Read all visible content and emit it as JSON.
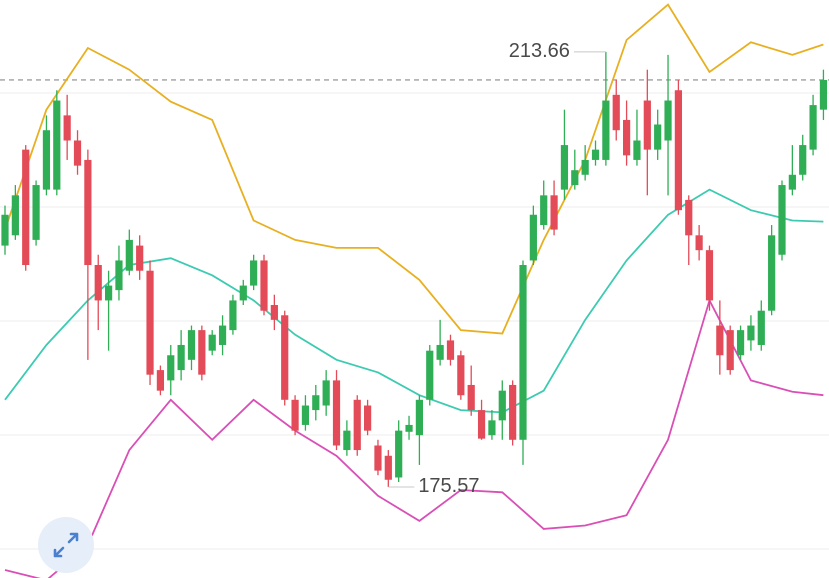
{
  "chart_data": {
    "type": "candlestick",
    "ylim": [
      167.6,
      218.2
    ],
    "reference_line": 211.2,
    "up_color": "#2fae55",
    "down_color": "#e24b57",
    "open": [
      196.7,
      197.6,
      205.1,
      197.2,
      201.6,
      201.6,
      208.1,
      205.9,
      204.2,
      195.0,
      191.9,
      192.8,
      194.5,
      196.7,
      194.5,
      185.8,
      184.9,
      185.8,
      186.7,
      189.3,
      187.5,
      188.0,
      189.3,
      191.9,
      193.2,
      195.4,
      191.5,
      190.6,
      183.2,
      181.0,
      182.3,
      182.7,
      184.9,
      178.8,
      183.2,
      182.7,
      179.2,
      178.3,
      176.4,
      180.4,
      180.1,
      183.2,
      186.7,
      188.4,
      187.1,
      184.5,
      182.3,
      180.1,
      181.4,
      184.5,
      179.7,
      195.4,
      198.5,
      201.1,
      201.6,
      202.0,
      202.9,
      204.2,
      204.2,
      209.9,
      207.7,
      204.2,
      209.4,
      205.1,
      205.9,
      210.3,
      200.7,
      197.6,
      196.3,
      189.7,
      189.3,
      187.1,
      188.4,
      188.0,
      191.0,
      195.9,
      201.6,
      202.9,
      205.1,
      208.6
    ],
    "high": [
      200.2,
      202.0,
      205.5,
      202.4,
      208.1,
      210.3,
      209.9,
      206.8,
      205.1,
      195.9,
      194.5,
      196.7,
      198.1,
      197.6,
      195.4,
      186.2,
      188.0,
      189.3,
      189.7,
      189.7,
      189.3,
      190.6,
      192.4,
      193.7,
      195.9,
      195.9,
      192.4,
      191.0,
      183.6,
      183.6,
      184.5,
      185.8,
      185.8,
      181.4,
      183.6,
      183.2,
      179.7,
      178.8,
      181.4,
      181.8,
      183.6,
      188.0,
      190.2,
      188.9,
      187.5,
      186.2,
      183.2,
      182.3,
      184.9,
      184.9,
      195.4,
      200.2,
      202.4,
      202.4,
      208.6,
      205.1,
      205.5,
      205.9,
      213.66,
      211.2,
      209.4,
      208.6,
      212.1,
      208.6,
      213.4,
      211.2,
      201.1,
      198.5,
      196.7,
      191.9,
      189.7,
      189.7,
      190.6,
      191.9,
      198.5,
      202.4,
      205.5,
      206.4,
      209.9,
      212.1
    ],
    "low": [
      195.9,
      197.2,
      194.5,
      196.7,
      201.1,
      201.1,
      204.2,
      202.9,
      186.7,
      189.3,
      187.5,
      191.9,
      194.1,
      193.7,
      184.5,
      183.6,
      183.6,
      184.9,
      185.8,
      184.9,
      187.1,
      187.1,
      188.9,
      191.5,
      192.8,
      190.6,
      189.3,
      182.7,
      180.1,
      180.5,
      181.4,
      181.8,
      178.8,
      178.3,
      178.3,
      180.1,
      176.6,
      175.57,
      176.0,
      179.7,
      177.5,
      182.7,
      186.2,
      186.2,
      183.2,
      181.8,
      179.7,
      179.7,
      179.7,
      179.2,
      177.5,
      195.0,
      198.1,
      197.6,
      200.7,
      201.6,
      202.4,
      203.7,
      203.7,
      205.9,
      203.7,
      203.7,
      201.1,
      204.2,
      201.1,
      199.4,
      195.0,
      195.4,
      191.0,
      185.4,
      185.4,
      186.7,
      187.5,
      187.5,
      190.6,
      195.4,
      201.1,
      202.4,
      204.6,
      207.7
    ],
    "close": [
      199.4,
      201.1,
      195.0,
      202.0,
      206.8,
      209.4,
      205.9,
      203.7,
      195.0,
      191.9,
      193.2,
      195.4,
      197.2,
      194.5,
      185.4,
      184.0,
      187.1,
      188.0,
      189.3,
      185.4,
      188.9,
      189.7,
      191.9,
      193.2,
      195.4,
      191.0,
      190.2,
      183.2,
      180.5,
      182.7,
      183.6,
      184.9,
      179.2,
      180.5,
      178.8,
      180.5,
      177.0,
      176.2,
      180.5,
      181.0,
      183.2,
      187.5,
      188.0,
      186.7,
      183.6,
      182.3,
      179.8,
      181.4,
      184.0,
      179.7,
      195.0,
      199.4,
      201.1,
      198.1,
      205.5,
      203.3,
      204.2,
      205.1,
      209.4,
      206.8,
      204.6,
      205.9,
      205.1,
      207.3,
      209.4,
      199.8,
      197.6,
      196.3,
      191.9,
      187.1,
      185.8,
      189.3,
      189.7,
      191.0,
      197.6,
      202.0,
      202.9,
      205.5,
      209.0,
      211.2
    ],
    "bands": {
      "x": [
        0,
        4,
        8,
        12,
        16,
        20,
        24,
        28,
        32,
        36,
        40,
        44,
        48,
        52,
        56,
        60,
        64,
        68,
        72,
        76,
        79
      ],
      "series": [
        {
          "color": "#e8b021",
          "values": [
            198.1,
            208.6,
            214.0,
            212.1,
            209.3,
            207.7,
            198.9,
            197.2,
            196.5,
            196.5,
            193.7,
            189.3,
            189.0,
            197.2,
            204.2,
            214.7,
            217.8,
            211.9,
            214.5,
            213.4,
            214.3
          ]
        },
        {
          "color": "#3ccbb1",
          "values": [
            183.2,
            188.0,
            191.9,
            195.0,
            195.6,
            194.1,
            191.9,
            188.9,
            186.7,
            185.6,
            183.6,
            182.3,
            182.1,
            184.0,
            190.2,
            195.4,
            199.4,
            201.6,
            199.8,
            198.9,
            198.8
          ]
        },
        {
          "color": "#d94fb6",
          "values": [
            168.3,
            167.4,
            170.5,
            178.8,
            183.2,
            179.7,
            183.2,
            180.5,
            178.3,
            174.8,
            172.6,
            175.3,
            175.1,
            171.9,
            172.2,
            173.1,
            179.7,
            191.9,
            184.9,
            183.9,
            183.6
          ]
        }
      ]
    },
    "annotations": [
      {
        "index": 58,
        "field": "high"
      },
      {
        "index": 37,
        "field": "low"
      }
    ]
  }
}
